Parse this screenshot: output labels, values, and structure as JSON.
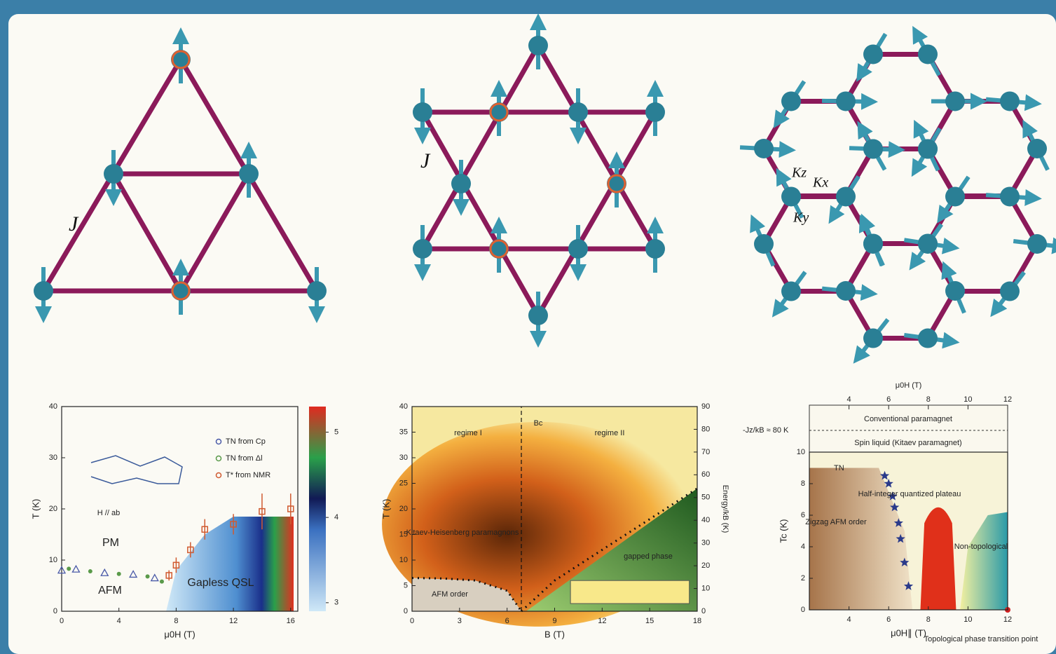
{
  "lattices": {
    "triangular_label": "J",
    "kagome_label": "J",
    "honeycomb_labels": [
      "Kz",
      "Kx",
      "Ky"
    ]
  },
  "chart_data": [
    {
      "type": "scatter",
      "xlabel": "μ0H (T)",
      "ylabel": "T (K)",
      "xlim": [
        0,
        16.5
      ],
      "xticks": [
        0,
        4,
        8,
        12,
        16
      ],
      "ylim": [
        0,
        40
      ],
      "yticks": [
        0,
        10,
        20,
        30,
        40
      ],
      "zlim": [
        2.9,
        5.3
      ],
      "zticks": [
        3,
        4,
        5
      ],
      "series": [
        {
          "name": "TN from Cp",
          "color": "#4a5aa8",
          "x": [
            0,
            1,
            3,
            5,
            6.5
          ],
          "values": [
            8,
            8.2,
            7.5,
            7.2,
            6.5
          ]
        },
        {
          "name": "TN from Δl",
          "color": "#5a9a4a",
          "x": [
            0.5,
            2,
            4,
            6,
            7
          ],
          "values": [
            8.3,
            7.8,
            7.3,
            6.8,
            5.8
          ]
        },
        {
          "name": "T* from NMR",
          "color": "#d05a30",
          "x": [
            7.5,
            8,
            9,
            10,
            12,
            14,
            16
          ],
          "values": [
            7,
            9,
            12,
            16,
            17,
            19.5,
            20
          ],
          "error": [
            1,
            1.5,
            1.5,
            2,
            2,
            3.5,
            3
          ]
        }
      ],
      "annotations": [
        "H // ab",
        "PM",
        "AFM",
        "Gapless QSL"
      ]
    },
    {
      "type": "contour",
      "xlabel": "B (T)",
      "ylabel": "T (K)",
      "y2label": "Energy/kB (K)",
      "xlim": [
        0,
        18
      ],
      "xticks": [
        0,
        3,
        6,
        9,
        12,
        15,
        18
      ],
      "ylim": [
        0,
        40
      ],
      "yticks": [
        0,
        5,
        10,
        15,
        20,
        25,
        30,
        35,
        40
      ],
      "y2lim": [
        0,
        90
      ],
      "y2ticks": [
        0,
        10,
        20,
        30,
        40,
        50,
        60,
        70,
        80,
        90
      ],
      "boundaries": [
        {
          "x": [
            6.9,
            6.9
          ],
          "values": [
            0,
            40
          ]
        },
        {
          "x": [
            6.9,
            9,
            12,
            15,
            18
          ],
          "values": [
            0,
            6,
            12,
            18,
            24
          ]
        },
        {
          "x": [
            0,
            2,
            4,
            6,
            6.9
          ],
          "values": [
            6.5,
            6.4,
            6,
            4,
            0
          ]
        }
      ],
      "annotations": [
        "regime I",
        "regime II",
        "Bc",
        "Kitaev-Heisenberg paramagnons",
        "gapped phase",
        "AFM order"
      ]
    },
    {
      "type": "scatter",
      "xlabel": "μ0H∥ (T)",
      "x2label": "μ0H (T)",
      "ylabel": "Tc (K)",
      "xlim": [
        2,
        12
      ],
      "xticks": [
        4,
        6,
        8,
        10,
        12
      ],
      "ylim": [
        0,
        10
      ],
      "yticks": [
        0,
        2,
        4,
        6,
        8,
        10
      ],
      "series": [
        {
          "name": "TN",
          "color": "#2a3a8a",
          "x": [
            5.8,
            6,
            6.2,
            6.3,
            6.5,
            6.6,
            6.8,
            7
          ],
          "values": [
            8.5,
            8,
            7.2,
            6.5,
            5.5,
            4.5,
            3,
            1.5
          ]
        }
      ],
      "annotations": [
        "Conventional paramagnet",
        "-Jz/kB ≈ 80 K",
        "Spin liquid (Kitaev paramagnet)",
        "Half-integer quantized plateau",
        "Zigzag AFM order",
        "Non-topological",
        "Topological phase transition point"
      ]
    }
  ]
}
